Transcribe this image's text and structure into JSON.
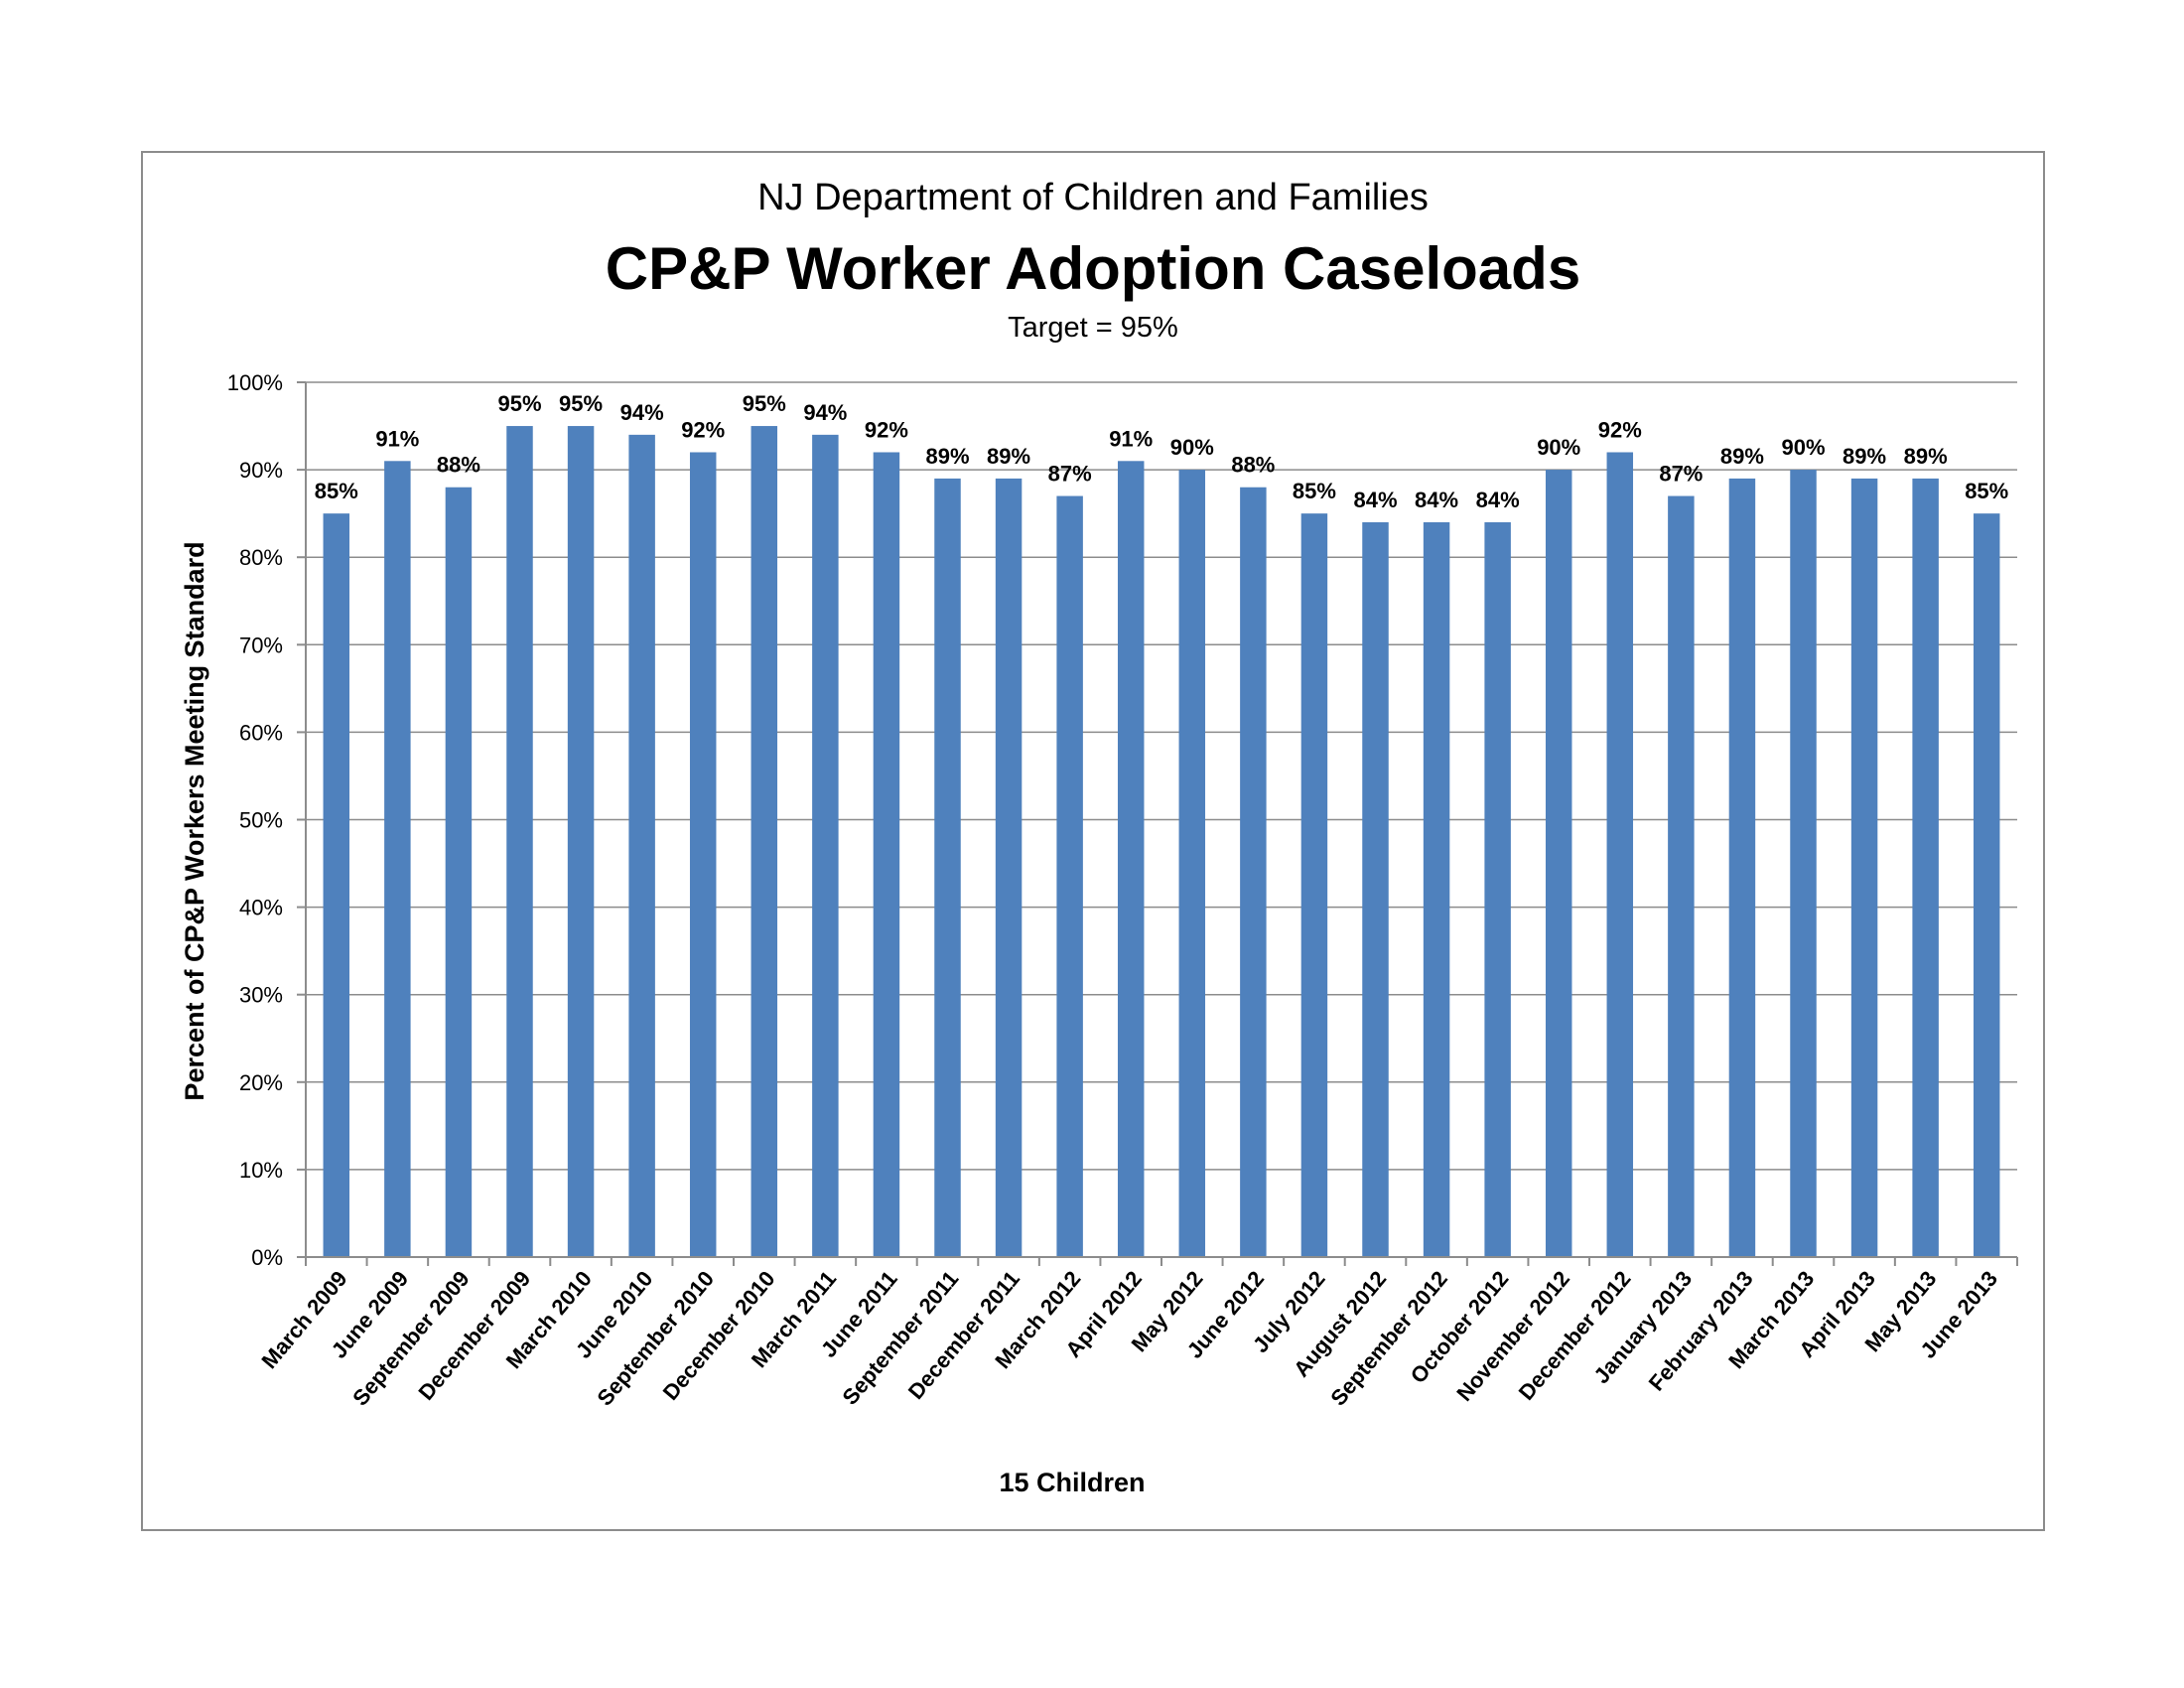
{
  "chart_data": {
    "type": "bar",
    "supertitle": "NJ Department of Children and Families",
    "title": "CP&P Worker Adoption Caseloads",
    "subtitle": "Target = 95%",
    "xlabel": "15 Children",
    "ylabel": "Percent of CP&P Workers Meeting Standard",
    "ylim": [
      0,
      100
    ],
    "ytick_step": 10,
    "ytick_suffix": "%",
    "grid": true,
    "bar_color": "#4f81bd",
    "grid_color": "#8c8c8c",
    "categories": [
      "March 2009",
      "June 2009",
      "September 2009",
      "December 2009",
      "March 2010",
      "June 2010",
      "September 2010",
      "December 2010",
      "March 2011",
      "June 2011",
      "September 2011",
      "December 2011",
      "March 2012",
      "April 2012",
      "May 2012",
      "June 2012",
      "July 2012",
      "August 2012",
      "September 2012",
      "October 2012",
      "November 2012",
      "December 2012",
      "January 2013",
      "February 2013",
      "March 2013",
      "April 2013",
      "May 2013",
      "June 2013"
    ],
    "values": [
      85,
      91,
      88,
      95,
      95,
      94,
      92,
      95,
      94,
      92,
      89,
      89,
      87,
      91,
      90,
      88,
      85,
      84,
      84,
      84,
      90,
      92,
      87,
      89,
      90,
      89,
      89,
      85
    ],
    "value_suffix": "%"
  }
}
